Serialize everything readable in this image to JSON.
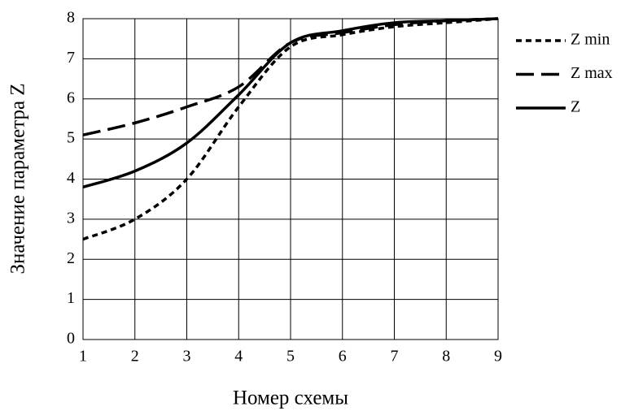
{
  "chart_data": {
    "type": "line",
    "x_label": "Номер схемы",
    "y_label": "Значение параметра Z",
    "x": [
      1,
      2,
      3,
      4,
      5,
      6,
      7,
      8,
      9
    ],
    "series": [
      {
        "name": "Z min",
        "color": "#000000",
        "dash": "short",
        "values": [
          2.5,
          3.0,
          4.0,
          5.8,
          7.3,
          7.6,
          7.8,
          7.9,
          8.0
        ]
      },
      {
        "name": "Z max",
        "color": "#000000",
        "dash": "long",
        "values": [
          5.1,
          5.4,
          5.8,
          6.3,
          7.4,
          7.65,
          7.85,
          7.95,
          8.0
        ]
      },
      {
        "name": "Z",
        "color": "#000000",
        "dash": "solid",
        "values": [
          3.8,
          4.2,
          4.9,
          6.1,
          7.4,
          7.7,
          7.9,
          7.95,
          8.0
        ]
      }
    ],
    "xlim": [
      1,
      9
    ],
    "xticks": [
      1,
      2,
      3,
      4,
      5,
      6,
      7,
      8,
      9
    ],
    "ylim": [
      0,
      8
    ],
    "yticks": [
      0,
      1,
      2,
      3,
      4,
      5,
      6,
      7,
      8
    ],
    "grid": true,
    "legend": "right"
  }
}
